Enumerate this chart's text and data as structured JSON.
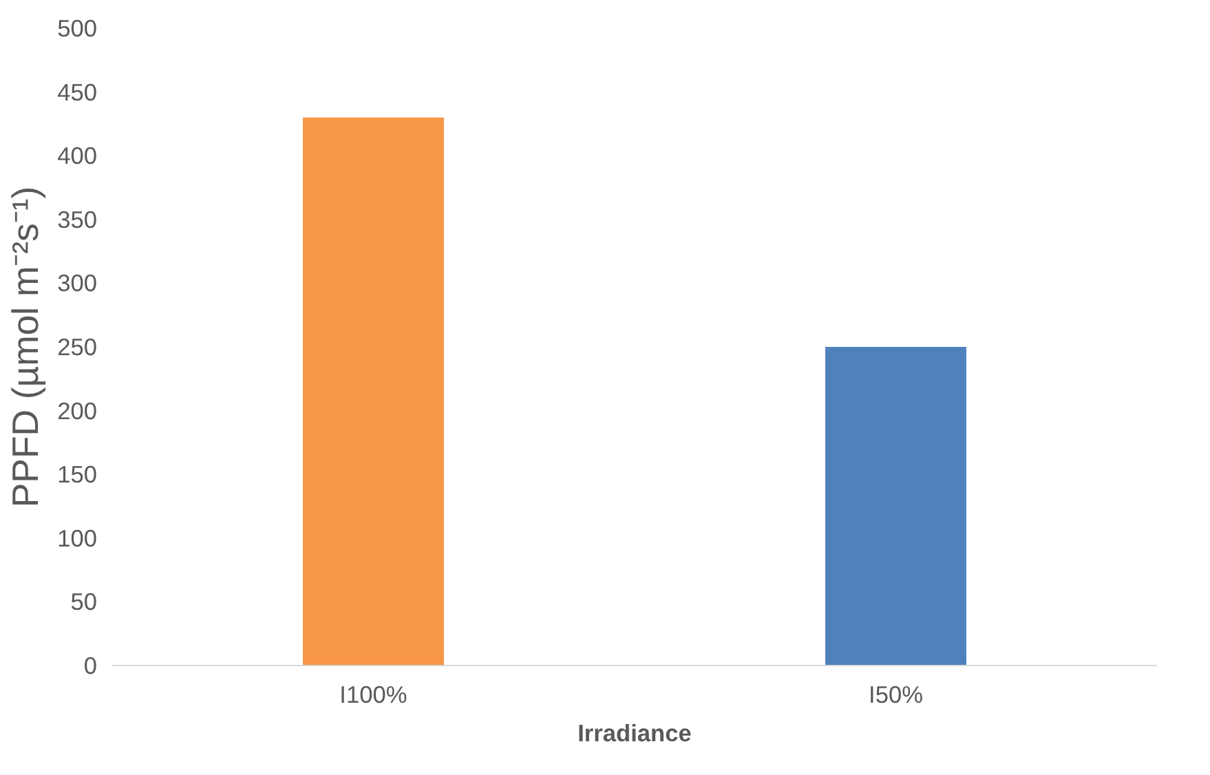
{
  "chart_data": {
    "type": "bar",
    "categories": [
      "I100%",
      "I50%"
    ],
    "values": [
      430,
      250
    ],
    "colors": [
      "#f79646",
      "#4f81bd"
    ],
    "xlabel": "Irradiance",
    "ylabel": "PPFD (µmol m⁻²s⁻¹)",
    "ylim": [
      0,
      500
    ],
    "yticks": [
      0,
      50,
      100,
      150,
      200,
      250,
      300,
      350,
      400,
      450,
      500
    ],
    "grid": false
  }
}
